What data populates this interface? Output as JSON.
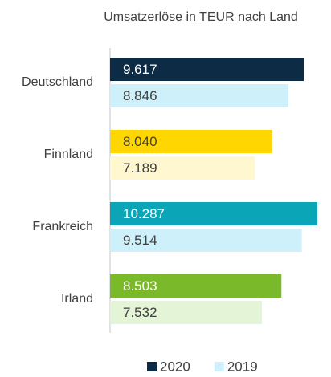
{
  "chart_data": {
    "type": "hbar",
    "title": "Umsatzerlöse in TEUR nach Land",
    "categories": [
      "Deutschland",
      "Finnland",
      "Frankreich",
      "Irland"
    ],
    "series": [
      {
        "name": "2020",
        "color": "#0d2b45",
        "colors": [
          "#0d2b45",
          "#ffd600",
          "#0aa5b6",
          "#7aba2a"
        ],
        "values": [
          9617,
          8040,
          10287,
          8503
        ],
        "value_labels": [
          "9.617",
          "8.040",
          "10.287",
          "8.503"
        ]
      },
      {
        "name": "2019",
        "color": "#cdf0fb",
        "colors": [
          "#cdf0fb",
          "#fff7cf",
          "#cdf0fb",
          "#e4f4d6"
        ],
        "values": [
          8846,
          7189,
          9514,
          7532
        ],
        "value_labels": [
          "8.846",
          "7.189",
          "9.514",
          "7.532"
        ]
      }
    ]
  }
}
